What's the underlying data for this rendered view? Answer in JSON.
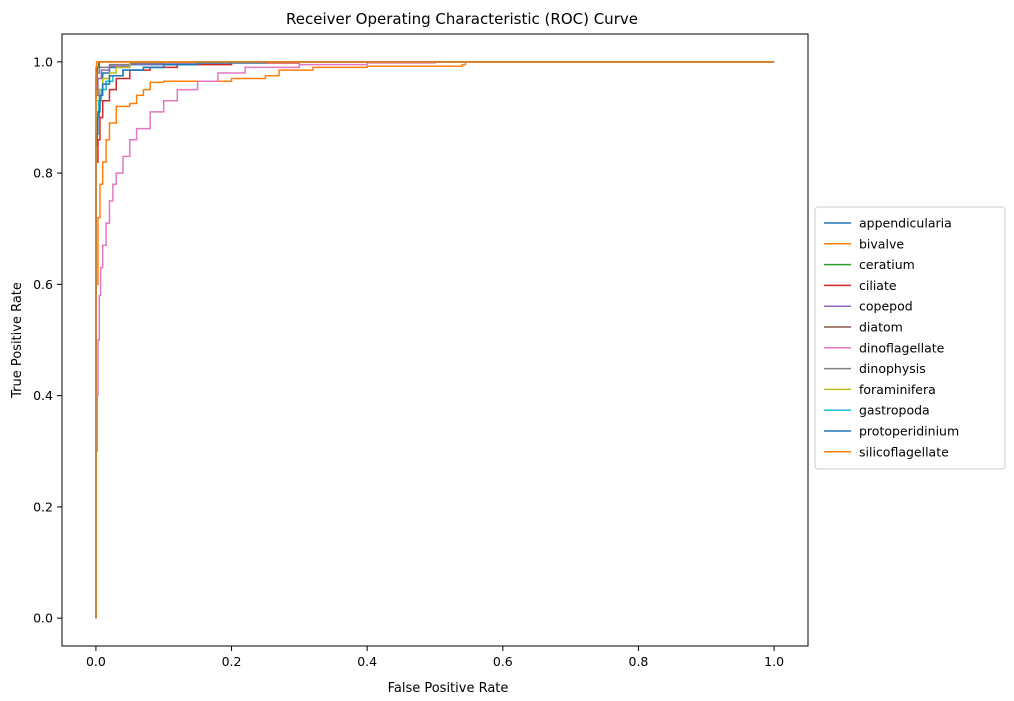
{
  "chart_data": {
    "type": "line",
    "title": "Receiver Operating Characteristic (ROC) Curve",
    "xlabel": "False Positive Rate",
    "ylabel": "True Positive Rate",
    "xlim": [
      -0.05,
      1.05
    ],
    "ylim": [
      -0.05,
      1.05
    ],
    "xticks": [
      "0.0",
      "0.2",
      "0.4",
      "0.6",
      "0.8",
      "1.0"
    ],
    "yticks": [
      "0.0",
      "0.2",
      "0.4",
      "0.6",
      "0.8",
      "1.0"
    ],
    "grid": false,
    "legend": "center-right-outside",
    "series": [
      {
        "name": "appendicularia",
        "color": "#1f77b4",
        "points": [
          [
            0,
            0
          ],
          [
            0,
            0.85
          ],
          [
            0.002,
            0.9
          ],
          [
            0.005,
            0.95
          ],
          [
            0.01,
            0.98
          ],
          [
            0.02,
            0.99
          ],
          [
            0.05,
            0.995
          ],
          [
            0.1,
            0.998
          ],
          [
            0.2,
            1.0
          ],
          [
            1,
            1.0
          ]
        ]
      },
      {
        "name": "bivalve",
        "color": "#ff7f0e",
        "points": [
          [
            0,
            0
          ],
          [
            0,
            0.6
          ],
          [
            0.003,
            0.72
          ],
          [
            0.006,
            0.78
          ],
          [
            0.01,
            0.82
          ],
          [
            0.015,
            0.86
          ],
          [
            0.02,
            0.89
          ],
          [
            0.03,
            0.92
          ],
          [
            0.05,
            0.925
          ],
          [
            0.06,
            0.94
          ],
          [
            0.07,
            0.95
          ],
          [
            0.08,
            0.963
          ],
          [
            0.1,
            0.965
          ],
          [
            0.15,
            0.965
          ],
          [
            0.2,
            0.97
          ],
          [
            0.25,
            0.975
          ],
          [
            0.27,
            0.985
          ],
          [
            0.32,
            0.99
          ],
          [
            0.4,
            0.992
          ],
          [
            0.54,
            0.995
          ],
          [
            0.545,
            1.0
          ],
          [
            1,
            1.0
          ]
        ]
      },
      {
        "name": "ceratium",
        "color": "#2ca02c",
        "points": [
          [
            0,
            0
          ],
          [
            0,
            0.96
          ],
          [
            0.002,
            0.99
          ],
          [
            0.004,
            1.0
          ],
          [
            1,
            1.0
          ]
        ]
      },
      {
        "name": "ciliate",
        "color": "#d62728",
        "points": [
          [
            0,
            0
          ],
          [
            0,
            0.82
          ],
          [
            0.003,
            0.86
          ],
          [
            0.006,
            0.9
          ],
          [
            0.01,
            0.93
          ],
          [
            0.02,
            0.95
          ],
          [
            0.03,
            0.97
          ],
          [
            0.05,
            0.985
          ],
          [
            0.08,
            0.99
          ],
          [
            0.12,
            0.995
          ],
          [
            0.2,
            0.998
          ],
          [
            0.3,
            1.0
          ],
          [
            1,
            1.0
          ]
        ]
      },
      {
        "name": "copepod",
        "color": "#9467bd",
        "points": [
          [
            0,
            0
          ],
          [
            0,
            0.94
          ],
          [
            0.003,
            0.97
          ],
          [
            0.008,
            0.985
          ],
          [
            0.02,
            0.992
          ],
          [
            0.05,
            0.996
          ],
          [
            0.1,
            0.998
          ],
          [
            0.2,
            1.0
          ],
          [
            1,
            1.0
          ]
        ]
      },
      {
        "name": "diatom",
        "color": "#8c564b",
        "points": [
          [
            0,
            0
          ],
          [
            0,
            0.97
          ],
          [
            0.002,
            0.99
          ],
          [
            0.005,
            1.0
          ],
          [
            1,
            1.0
          ]
        ]
      },
      {
        "name": "dinoflagellate",
        "color": "#e377c2",
        "points": [
          [
            0,
            0
          ],
          [
            0,
            0.3
          ],
          [
            0.002,
            0.4
          ],
          [
            0.003,
            0.5
          ],
          [
            0.005,
            0.58
          ],
          [
            0.007,
            0.63
          ],
          [
            0.01,
            0.67
          ],
          [
            0.015,
            0.71
          ],
          [
            0.02,
            0.75
          ],
          [
            0.025,
            0.78
          ],
          [
            0.03,
            0.8
          ],
          [
            0.04,
            0.83
          ],
          [
            0.05,
            0.86
          ],
          [
            0.06,
            0.88
          ],
          [
            0.08,
            0.91
          ],
          [
            0.1,
            0.93
          ],
          [
            0.12,
            0.95
          ],
          [
            0.15,
            0.965
          ],
          [
            0.18,
            0.98
          ],
          [
            0.22,
            0.99
          ],
          [
            0.3,
            0.995
          ],
          [
            0.4,
            0.998
          ],
          [
            0.5,
            1.0
          ],
          [
            1,
            1.0
          ]
        ]
      },
      {
        "name": "dinophysis",
        "color": "#7f7f7f",
        "points": [
          [
            0,
            0
          ],
          [
            0,
            0.95
          ],
          [
            0.002,
            0.98
          ],
          [
            0.005,
            0.99
          ],
          [
            0.02,
            0.995
          ],
          [
            0.05,
            0.998
          ],
          [
            0.1,
            1.0
          ],
          [
            1,
            1.0
          ]
        ]
      },
      {
        "name": "foraminifera",
        "color": "#bcbd22",
        "points": [
          [
            0,
            0
          ],
          [
            0,
            0.93
          ],
          [
            0.005,
            0.95
          ],
          [
            0.01,
            0.97
          ],
          [
            0.02,
            0.98
          ],
          [
            0.03,
            0.99
          ],
          [
            0.05,
            1.0
          ],
          [
            1,
            1.0
          ]
        ]
      },
      {
        "name": "gastropoda",
        "color": "#17becf",
        "points": [
          [
            0,
            0
          ],
          [
            0,
            0.9
          ],
          [
            0.004,
            0.93
          ],
          [
            0.008,
            0.95
          ],
          [
            0.015,
            0.965
          ],
          [
            0.025,
            0.975
          ],
          [
            0.04,
            0.985
          ],
          [
            0.07,
            0.99
          ],
          [
            0.1,
            0.995
          ],
          [
            0.15,
            1.0
          ],
          [
            1,
            1.0
          ]
        ]
      },
      {
        "name": "protoperidinium",
        "color": "#1f77b4",
        "points": [
          [
            0,
            0
          ],
          [
            0,
            0.87
          ],
          [
            0.003,
            0.91
          ],
          [
            0.006,
            0.94
          ],
          [
            0.01,
            0.96
          ],
          [
            0.02,
            0.975
          ],
          [
            0.04,
            0.985
          ],
          [
            0.07,
            0.99
          ],
          [
            0.1,
            0.995
          ],
          [
            0.15,
            0.998
          ],
          [
            0.25,
            1.0
          ],
          [
            1,
            1.0
          ]
        ]
      },
      {
        "name": "silicoflagellate",
        "color": "#ff7f0e",
        "points": [
          [
            0,
            0
          ],
          [
            0,
            0.99
          ],
          [
            0.001,
            1.0
          ],
          [
            1,
            1.0
          ]
        ]
      }
    ]
  }
}
